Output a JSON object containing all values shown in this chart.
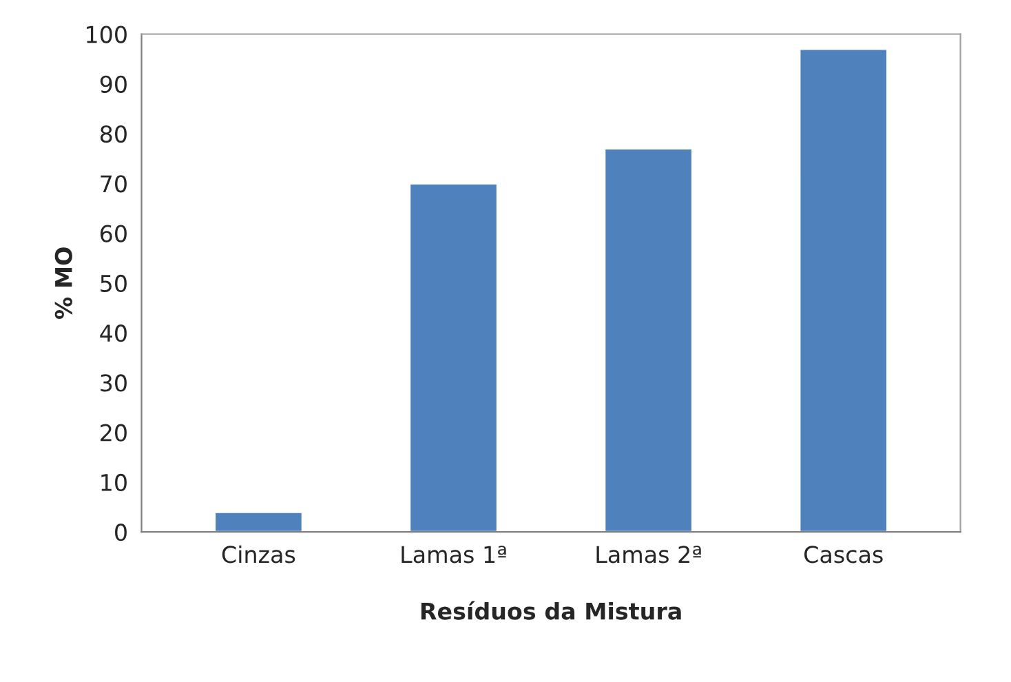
{
  "chart_data": {
    "type": "bar",
    "xlabel": "Resíduos da Mistura",
    "ylabel": "% MO",
    "categories": [
      "Cinzas",
      "Lamas 1ª",
      "Lamas 2ª",
      "Cascas"
    ],
    "values": [
      4,
      70,
      77,
      97
    ],
    "color": "#4f81bd",
    "ylim": [
      0,
      100
    ],
    "yticks": [
      0,
      10,
      20,
      30,
      40,
      50,
      60,
      70,
      80,
      90,
      100
    ],
    "grid": false
  }
}
